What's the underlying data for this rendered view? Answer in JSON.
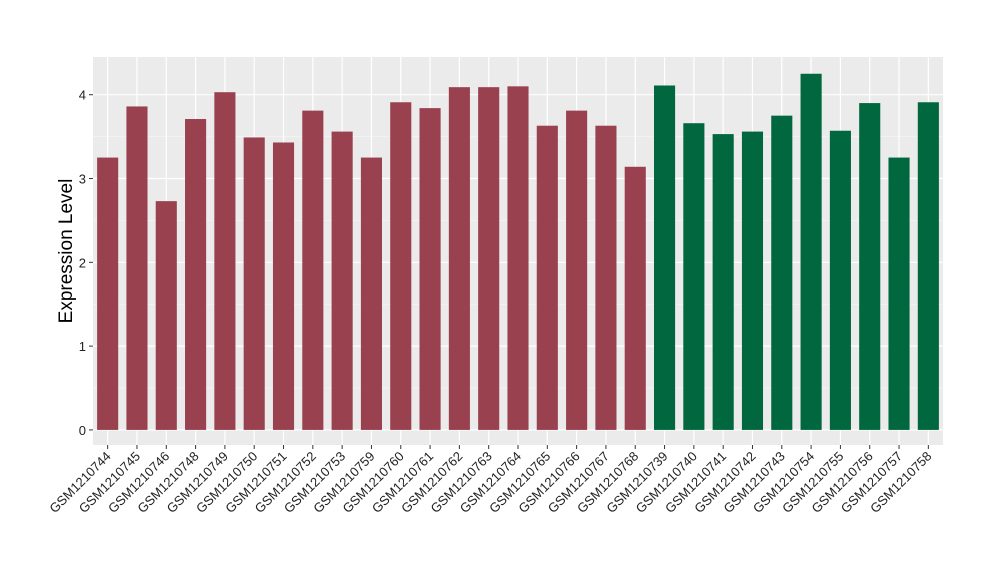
{
  "chart_data": {
    "type": "bar",
    "title": "",
    "xlabel": "",
    "ylabel": "Expression Level",
    "ylim": [
      -0.18,
      4.45
    ],
    "yticks": [
      0,
      1,
      2,
      3,
      4
    ],
    "grid": true,
    "legend": "none",
    "panel_background": "#ebebeb",
    "grid_color": "#ffffff",
    "categories": [
      "GSM1210744",
      "GSM1210745",
      "GSM1210746",
      "GSM1210748",
      "GSM1210749",
      "GSM1210750",
      "GSM1210751",
      "GSM1210752",
      "GSM1210753",
      "GSM1210759",
      "GSM1210760",
      "GSM1210761",
      "GSM1210762",
      "GSM1210763",
      "GSM1210764",
      "GSM1210765",
      "GSM1210766",
      "GSM1210767",
      "GSM1210768",
      "GSM1210739",
      "GSM1210740",
      "GSM1210741",
      "GSM1210742",
      "GSM1210743",
      "GSM1210754",
      "GSM1210755",
      "GSM1210756",
      "GSM1210757",
      "GSM1210758"
    ],
    "values": [
      3.25,
      3.86,
      2.73,
      3.71,
      4.03,
      3.49,
      3.43,
      3.81,
      3.56,
      3.25,
      3.91,
      3.84,
      4.09,
      4.09,
      4.1,
      3.63,
      3.81,
      3.63,
      3.14,
      4.11,
      3.66,
      3.53,
      3.56,
      3.75,
      4.25,
      3.57,
      3.9,
      3.25,
      3.91
    ],
    "groups": [
      "red",
      "red",
      "red",
      "red",
      "red",
      "red",
      "red",
      "red",
      "red",
      "red",
      "red",
      "red",
      "red",
      "red",
      "red",
      "red",
      "red",
      "red",
      "red",
      "green",
      "green",
      "green",
      "green",
      "green",
      "green",
      "green",
      "green",
      "green",
      "green"
    ],
    "colors": {
      "red": "#9a4150",
      "green": "#00673f"
    }
  }
}
